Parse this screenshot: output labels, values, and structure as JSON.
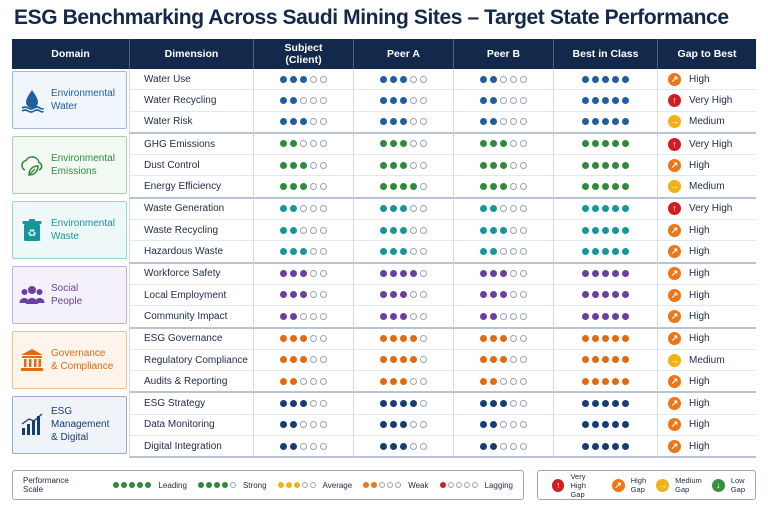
{
  "title": "ESG Benchmarking Across Saudi Mining Sites – Target State Performance",
  "headers": {
    "domain": "Domain",
    "dimension": "Dimension",
    "subject": "Subject\n(Client)",
    "peer_a": "Peer A",
    "peer_b": "Peer B",
    "best": "Best in Class",
    "gap": "Gap to Best"
  },
  "groups": [
    {
      "label": "Environmental\nWater",
      "icon": "water-drop-icon",
      "color": "#1f5fa0",
      "bg": "#f1f6fc",
      "border": "#9bbbe0",
      "rows": [
        {
          "dimension": "Water Use",
          "subject": 3,
          "peer_a": 3,
          "peer_b": 2,
          "best": 5,
          "gap": "High"
        },
        {
          "dimension": "Water Recycling",
          "subject": 2,
          "peer_a": 3,
          "peer_b": 2,
          "best": 5,
          "gap": "Very High"
        },
        {
          "dimension": "Water Risk",
          "subject": 3,
          "peer_a": 3,
          "peer_b": 2,
          "best": 5,
          "gap": "Medium"
        }
      ]
    },
    {
      "label": "Environmental\nEmissions",
      "icon": "cloud-leaf-icon",
      "color": "#2e8b3a",
      "bg": "#f2f9f2",
      "border": "#a6d1a8",
      "rows": [
        {
          "dimension": "GHG Emissions",
          "subject": 2,
          "peer_a": 3,
          "peer_b": 3,
          "best": 5,
          "gap": "Very High"
        },
        {
          "dimension": "Dust Control",
          "subject": 3,
          "peer_a": 3,
          "peer_b": 3,
          "best": 5,
          "gap": "High"
        },
        {
          "dimension": "Energy Efficiency",
          "subject": 3,
          "peer_a": 4,
          "peer_b": 3,
          "best": 5,
          "gap": "Medium"
        }
      ]
    },
    {
      "label": "Environmental\nWaste",
      "icon": "recycle-bin-icon",
      "color": "#16969b",
      "bg": "#eff8f8",
      "border": "#97d0d2",
      "rows": [
        {
          "dimension": "Waste Generation",
          "subject": 2,
          "peer_a": 3,
          "peer_b": 2,
          "best": 5,
          "gap": "Very High"
        },
        {
          "dimension": "Waste Recycling",
          "subject": 2,
          "peer_a": 3,
          "peer_b": 3,
          "best": 5,
          "gap": "High"
        },
        {
          "dimension": "Hazardous Waste",
          "subject": 3,
          "peer_a": 3,
          "peer_b": 2,
          "best": 5,
          "gap": "High"
        }
      ]
    },
    {
      "label": "Social\nPeople",
      "icon": "people-icon",
      "color": "#6b3fa0",
      "bg": "#f5f1fa",
      "border": "#c3acdf",
      "rows": [
        {
          "dimension": "Workforce Safety",
          "subject": 3,
          "peer_a": 4,
          "peer_b": 3,
          "best": 5,
          "gap": "High"
        },
        {
          "dimension": "Local Employment",
          "subject": 3,
          "peer_a": 3,
          "peer_b": 3,
          "best": 5,
          "gap": "High"
        },
        {
          "dimension": "Community Impact",
          "subject": 2,
          "peer_a": 3,
          "peer_b": 2,
          "best": 5,
          "gap": "High"
        }
      ]
    },
    {
      "label": "Governance\n& Compliance",
      "icon": "courthouse-icon",
      "color": "#e26b12",
      "bg": "#fdf4ec",
      "border": "#f1bf95",
      "rows": [
        {
          "dimension": "ESG Governance",
          "subject": 3,
          "peer_a": 4,
          "peer_b": 3,
          "best": 5,
          "gap": "High"
        },
        {
          "dimension": "Regulatory Compliance",
          "subject": 3,
          "peer_a": 4,
          "peer_b": 3,
          "best": 5,
          "gap": "Medium"
        },
        {
          "dimension": "Audits & Reporting",
          "subject": 2,
          "peer_a": 3,
          "peer_b": 2,
          "best": 5,
          "gap": "High"
        }
      ]
    },
    {
      "label": "ESG Management\n& Digital",
      "icon": "bar-chart-icon",
      "color": "#163e73",
      "bg": "#f0f3f8",
      "border": "#9aabc8",
      "rows": [
        {
          "dimension": "ESG Strategy",
          "subject": 3,
          "peer_a": 4,
          "peer_b": 3,
          "best": 5,
          "gap": "High"
        },
        {
          "dimension": "Data Monitoring",
          "subject": 2,
          "peer_a": 3,
          "peer_b": 2,
          "best": 5,
          "gap": "High"
        },
        {
          "dimension": "Digital Integration",
          "subject": 2,
          "peer_a": 3,
          "peer_b": 2,
          "best": 5,
          "gap": "High"
        }
      ]
    }
  ],
  "gap_colors": {
    "Very High": "#cf1d24",
    "High": "#ee7616",
    "Medium": "#f2b117",
    "Low": "#3a8f3d"
  },
  "legend": {
    "title": "Performance Scale",
    "items": [
      {
        "label": "Leading",
        "filled": 5,
        "color": "#2e8b3a"
      },
      {
        "label": "Strong",
        "filled": 4,
        "color": "#2e8b3a"
      },
      {
        "label": "Average",
        "filled": 3,
        "color": "#f2b117"
      },
      {
        "label": "Weak",
        "filled": 2,
        "color": "#ee7616"
      },
      {
        "label": "Lagging",
        "filled": 1,
        "color": "#cf1d24"
      }
    ]
  },
  "gap_legend": [
    {
      "label": "Very High\nGap",
      "level": "Very High"
    },
    {
      "label": "High\nGap",
      "level": "High"
    },
    {
      "label": "Medium\nGap",
      "level": "Medium"
    },
    {
      "label": "Low\nGap",
      "level": "Low"
    }
  ]
}
